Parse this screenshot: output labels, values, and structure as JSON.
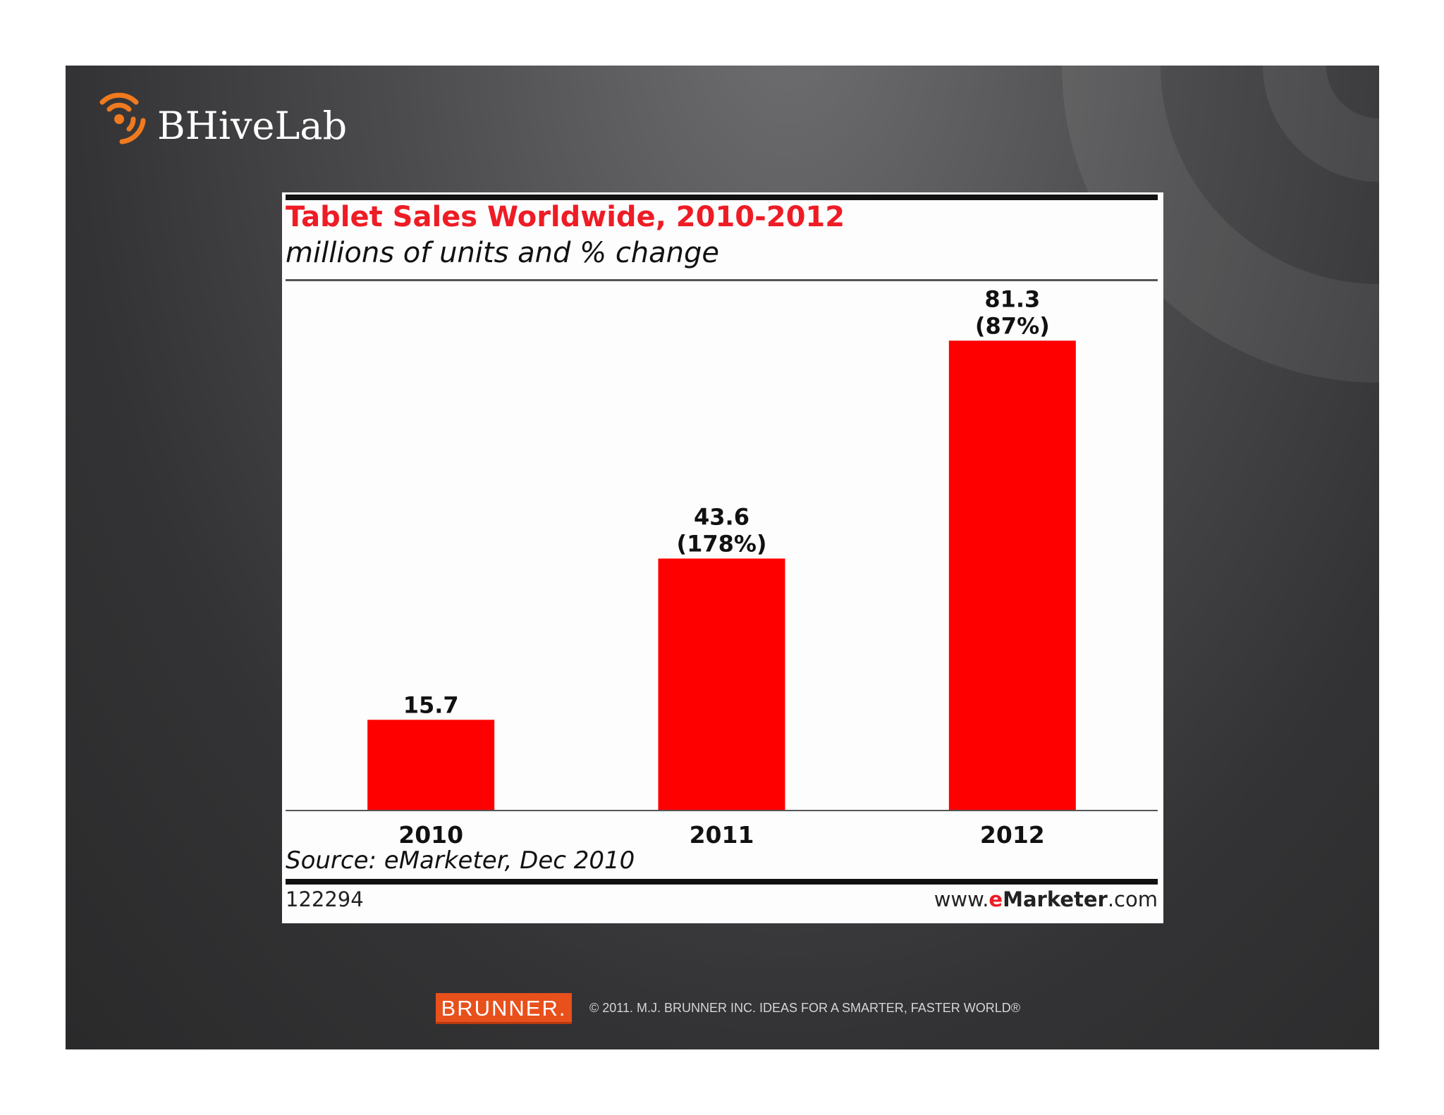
{
  "slide": {
    "logo_text": "BHiveLab",
    "footer_brand": "BRUNNER.",
    "footer_text": "© 2011. M.J. BRUNNER INC.  IDEAS FOR A SMARTER, FASTER WORLD®",
    "colors": {
      "accent": "#ee1c25",
      "brand_orange": "#e8501c",
      "background": "#3a3a3c"
    }
  },
  "chart_data": {
    "type": "bar",
    "title": "Tablet Sales Worldwide, 2010-2012",
    "subtitle": "millions of units and % change",
    "categories": [
      "2010",
      "2011",
      "2012"
    ],
    "values": [
      15.7,
      43.6,
      81.3
    ],
    "value_labels": [
      "15.7",
      "43.6",
      "81.3"
    ],
    "change_labels": [
      "",
      "(178%)",
      "(87%)"
    ],
    "xlabel": "",
    "ylabel": "",
    "ylim": [
      0,
      90
    ],
    "grid": false,
    "bar_color": "#ff0000",
    "source": "Source: eMarketer, Dec 2010",
    "chart_id": "122294",
    "site_prefix": "www.",
    "site_brand_e": "e",
    "site_brand_rest": "Marketer",
    "site_suffix": ".com"
  }
}
